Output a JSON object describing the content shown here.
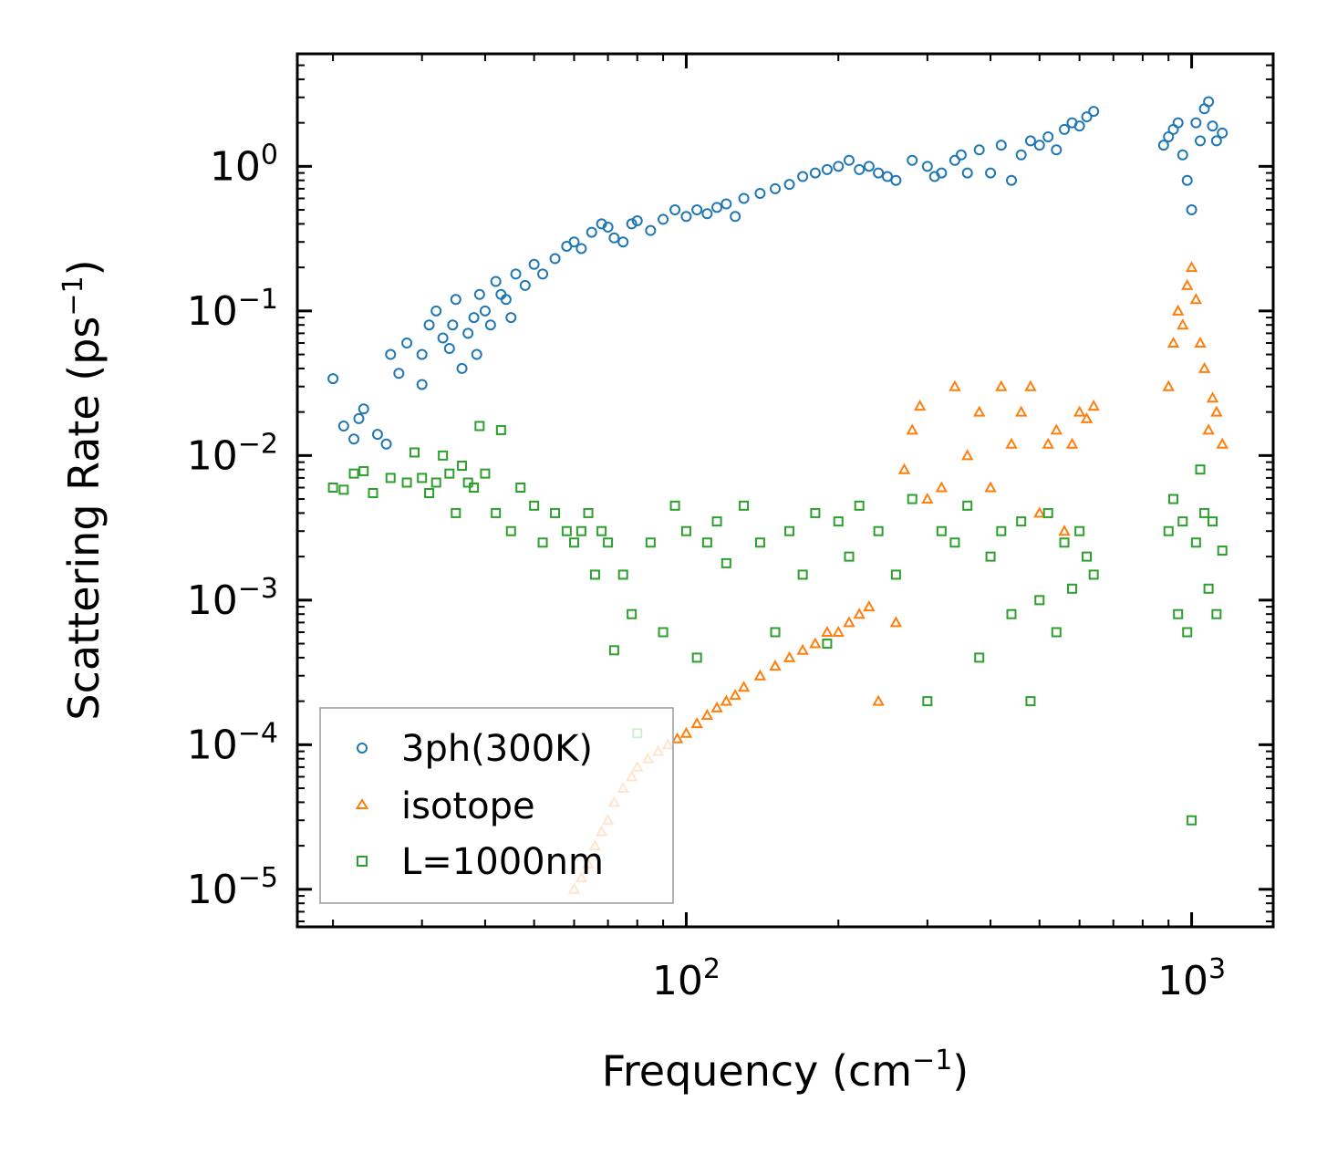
{
  "chart_data": {
    "type": "scatter",
    "xscale": "log",
    "yscale": "log",
    "xlim": [
      17,
      1450
    ],
    "ylim": [
      5.5e-06,
      6.0
    ],
    "xlabel": "Frequency (cm",
    "xlabel_sup": "−1",
    "xlabel_end": ")",
    "ylabel": "Scattering Rate (ps",
    "ylabel_sup": "−1",
    "ylabel_end": ")",
    "x_ticks": [
      {
        "value": 100,
        "base": "10",
        "exp": "2"
      },
      {
        "value": 1000,
        "base": "10",
        "exp": "3"
      }
    ],
    "y_ticks": [
      {
        "value": 1,
        "base": "10",
        "exp": "0"
      },
      {
        "value": 0.1,
        "base": "10",
        "exp": "−1"
      },
      {
        "value": 0.01,
        "base": "10",
        "exp": "−2"
      },
      {
        "value": 0.001,
        "base": "10",
        "exp": "−3"
      },
      {
        "value": 0.0001,
        "base": "10",
        "exp": "−4"
      },
      {
        "value": 1e-05,
        "base": "10",
        "exp": "−5"
      }
    ],
    "legend_position": "lower-left",
    "series": [
      {
        "name": "3ph(300K)",
        "marker": "circle",
        "color": "#1f77b4",
        "x": [
          20,
          21,
          22,
          22.5,
          23,
          24.5,
          25.5,
          26,
          27,
          28,
          30,
          30,
          31,
          32,
          33,
          34,
          34.5,
          35,
          36,
          37,
          38,
          38.5,
          39,
          40,
          41,
          42,
          43,
          44,
          45,
          46,
          48,
          50,
          52,
          55,
          58,
          60,
          62,
          65,
          68,
          70,
          72,
          75,
          78,
          80,
          85,
          90,
          95,
          100,
          105,
          110,
          115,
          120,
          125,
          130,
          140,
          150,
          160,
          170,
          180,
          190,
          200,
          210,
          220,
          230,
          240,
          250,
          260,
          280,
          300,
          310,
          320,
          340,
          350,
          360,
          380,
          400,
          420,
          440,
          460,
          480,
          500,
          520,
          540,
          560,
          580,
          600,
          620,
          640,
          880,
          900,
          920,
          940,
          960,
          980,
          1000,
          1020,
          1040,
          1060,
          1080,
          1100,
          1120,
          1150
        ],
        "y": [
          0.034,
          0.016,
          0.013,
          0.018,
          0.021,
          0.014,
          0.012,
          0.05,
          0.037,
          0.06,
          0.031,
          0.05,
          0.08,
          0.1,
          0.065,
          0.055,
          0.08,
          0.12,
          0.04,
          0.07,
          0.09,
          0.05,
          0.13,
          0.1,
          0.08,
          0.16,
          0.13,
          0.12,
          0.09,
          0.18,
          0.15,
          0.21,
          0.18,
          0.23,
          0.28,
          0.3,
          0.27,
          0.35,
          0.4,
          0.38,
          0.32,
          0.3,
          0.4,
          0.42,
          0.36,
          0.43,
          0.5,
          0.45,
          0.5,
          0.47,
          0.52,
          0.55,
          0.45,
          0.6,
          0.65,
          0.7,
          0.75,
          0.85,
          0.9,
          0.95,
          1.0,
          1.1,
          0.95,
          1.0,
          0.9,
          0.85,
          0.8,
          1.1,
          1.0,
          0.85,
          0.9,
          1.1,
          1.2,
          0.9,
          1.3,
          0.9,
          1.4,
          0.8,
          1.2,
          1.5,
          1.4,
          1.6,
          1.3,
          1.8,
          2.0,
          1.9,
          2.2,
          2.4,
          1.4,
          1.6,
          1.8,
          2.0,
          1.2,
          0.8,
          0.5,
          2.0,
          1.5,
          2.5,
          2.8,
          1.9,
          1.5,
          1.7
        ]
      },
      {
        "name": "isotope",
        "marker": "triangle",
        "color": "#ff7f0e",
        "x": [
          60,
          62,
          64,
          66,
          68,
          70,
          72,
          75,
          78,
          80,
          84,
          88,
          92,
          96,
          100,
          105,
          110,
          115,
          120,
          125,
          130,
          140,
          150,
          160,
          170,
          180,
          190,
          200,
          210,
          220,
          230,
          240,
          260,
          270,
          280,
          290,
          300,
          320,
          340,
          360,
          380,
          400,
          420,
          440,
          460,
          480,
          500,
          520,
          540,
          560,
          580,
          600,
          620,
          640,
          900,
          920,
          940,
          960,
          980,
          1000,
          1020,
          1040,
          1060,
          1080,
          1100,
          1120,
          1150
        ],
        "y": [
          1e-05,
          1.2e-05,
          1.5e-05,
          2e-05,
          2.5e-05,
          3e-05,
          4e-05,
          5e-05,
          6e-05,
          7e-05,
          8e-05,
          9e-05,
          0.0001,
          0.00011,
          0.00012,
          0.00014,
          0.00016,
          0.00018,
          0.0002,
          0.00022,
          0.00025,
          0.0003,
          0.00035,
          0.0004,
          0.00045,
          0.0005,
          0.0006,
          0.0006,
          0.0007,
          0.0008,
          0.0009,
          0.0002,
          0.0007,
          0.008,
          0.015,
          0.022,
          0.005,
          0.006,
          0.03,
          0.01,
          0.02,
          0.006,
          0.03,
          0.012,
          0.02,
          0.03,
          0.004,
          0.012,
          0.015,
          0.003,
          0.012,
          0.02,
          0.018,
          0.022,
          0.03,
          0.06,
          0.1,
          0.08,
          0.15,
          0.2,
          0.12,
          0.06,
          0.04,
          0.015,
          0.025,
          0.02,
          0.012
        ]
      },
      {
        "name": "L=1000nm",
        "marker": "square",
        "color": "#2ca02c",
        "x": [
          20,
          21,
          22,
          23,
          24,
          26,
          28,
          29,
          30,
          31,
          32,
          33,
          34,
          35,
          36,
          37,
          38,
          39,
          40,
          42,
          43,
          45,
          47,
          50,
          52,
          55,
          58,
          60,
          62,
          64,
          66,
          68,
          70,
          72,
          75,
          78,
          80,
          85,
          90,
          95,
          100,
          105,
          110,
          115,
          120,
          130,
          140,
          150,
          160,
          170,
          180,
          190,
          200,
          210,
          220,
          240,
          260,
          280,
          300,
          320,
          340,
          360,
          380,
          400,
          420,
          440,
          460,
          480,
          500,
          520,
          540,
          560,
          580,
          600,
          620,
          640,
          900,
          920,
          940,
          960,
          980,
          1000,
          1020,
          1040,
          1060,
          1080,
          1100,
          1120,
          1150
        ],
        "y": [
          0.006,
          0.0058,
          0.0075,
          0.0078,
          0.0055,
          0.007,
          0.0065,
          0.0105,
          0.007,
          0.0055,
          0.0065,
          0.01,
          0.0075,
          0.004,
          0.0085,
          0.0065,
          0.006,
          0.016,
          0.0075,
          0.004,
          0.015,
          0.003,
          0.006,
          0.0045,
          0.0025,
          0.004,
          0.003,
          0.0025,
          0.003,
          0.004,
          0.0015,
          0.003,
          0.0025,
          0.00045,
          0.0015,
          0.0008,
          0.00012,
          0.0025,
          0.0006,
          0.0045,
          0.003,
          0.0004,
          0.0025,
          0.0035,
          0.0018,
          0.0045,
          0.0025,
          0.0006,
          0.003,
          0.0015,
          0.004,
          0.0005,
          0.0035,
          0.002,
          0.0045,
          0.003,
          0.0015,
          0.005,
          0.0002,
          0.003,
          0.0025,
          0.0045,
          0.0004,
          0.002,
          0.003,
          0.0008,
          0.0035,
          0.0002,
          0.001,
          0.004,
          0.0006,
          0.0025,
          0.0012,
          0.003,
          0.002,
          0.0015,
          0.003,
          0.005,
          0.0008,
          0.0035,
          0.0006,
          3e-05,
          0.0025,
          0.008,
          0.004,
          0.0012,
          0.0035,
          0.0008,
          0.0022
        ]
      }
    ]
  }
}
